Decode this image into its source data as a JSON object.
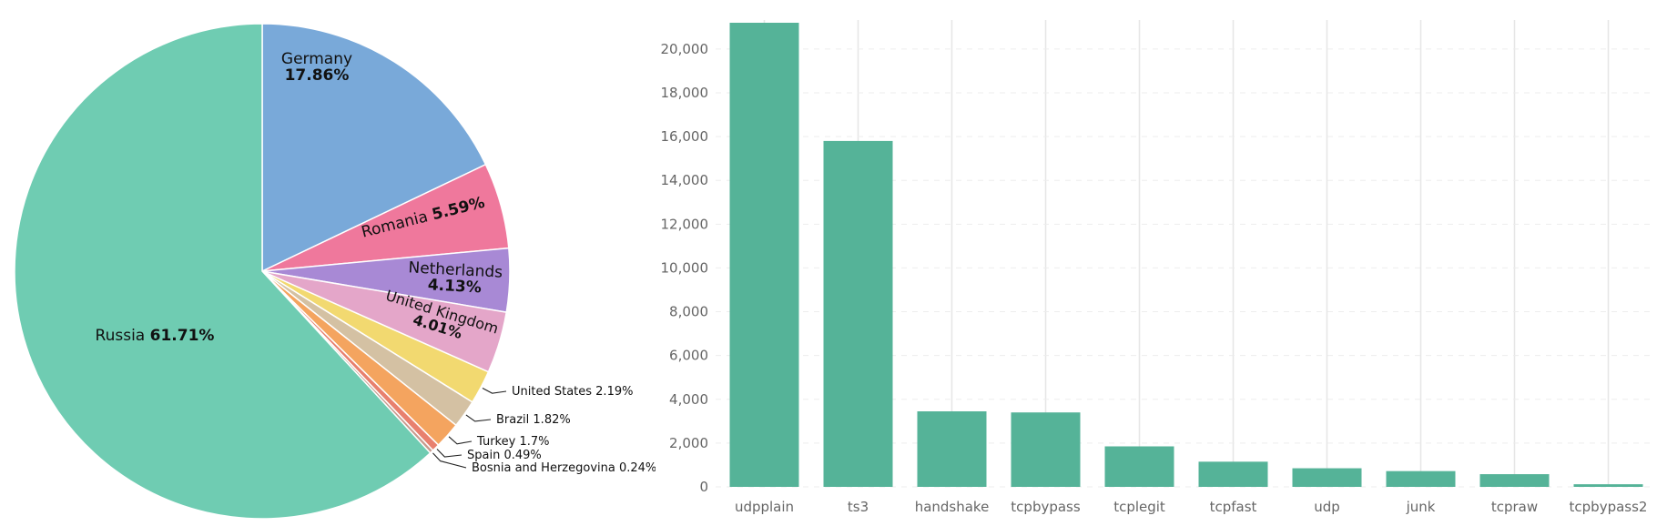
{
  "chart_data": [
    {
      "type": "pie",
      "slices": [
        {
          "label": "Russia",
          "value": 61.71,
          "pct_text": "61.71%",
          "color": "#6fccb2"
        },
        {
          "label": "Germany",
          "value": 17.86,
          "pct_text": "17.86%",
          "color": "#79a9d9"
        },
        {
          "label": "Romania",
          "value": 5.59,
          "pct_text": "5.59%",
          "color": "#ef789c"
        },
        {
          "label": "Netherlands",
          "value": 4.13,
          "pct_text": "4.13%",
          "color": "#a889d5"
        },
        {
          "label": "United Kingdom",
          "value": 4.01,
          "pct_text": "4.01%",
          "color": "#e4a6c9"
        },
        {
          "label": "United States",
          "value": 2.19,
          "pct_text": "2.19%",
          "color": "#f2d970"
        },
        {
          "label": "Brazil",
          "value": 1.82,
          "pct_text": "1.82%",
          "color": "#d4c1a3"
        },
        {
          "label": "Turkey",
          "value": 1.7,
          "pct_text": "1.7%",
          "color": "#f4a45f"
        },
        {
          "label": "Spain",
          "value": 0.49,
          "pct_text": "0.49%",
          "color": "#e8806f"
        },
        {
          "label": "Bosnia and Herzegovina",
          "value": 0.24,
          "pct_text": "0.24%",
          "color": "#c99b8e"
        }
      ]
    },
    {
      "type": "bar",
      "categories": [
        "udpplain",
        "ts3",
        "handshake",
        "tcpbypass",
        "tcplegit",
        "tcpfast",
        "udp",
        "junk",
        "tcpraw",
        "tcpbypass2"
      ],
      "values": [
        21200,
        15800,
        3450,
        3400,
        1850,
        1150,
        850,
        720,
        580,
        120
      ],
      "ylim": [
        0,
        21200
      ],
      "yticks": [
        0,
        2000,
        4000,
        6000,
        8000,
        10000,
        12000,
        14000,
        16000,
        18000,
        20000
      ],
      "ytick_labels": [
        "0",
        "2,000",
        "4,000",
        "6,000",
        "8,000",
        "10,000",
        "12,000",
        "14,000",
        "16,000",
        "18,000",
        "20,000"
      ],
      "bar_color": "#55b398",
      "grid": "vertical"
    }
  ]
}
